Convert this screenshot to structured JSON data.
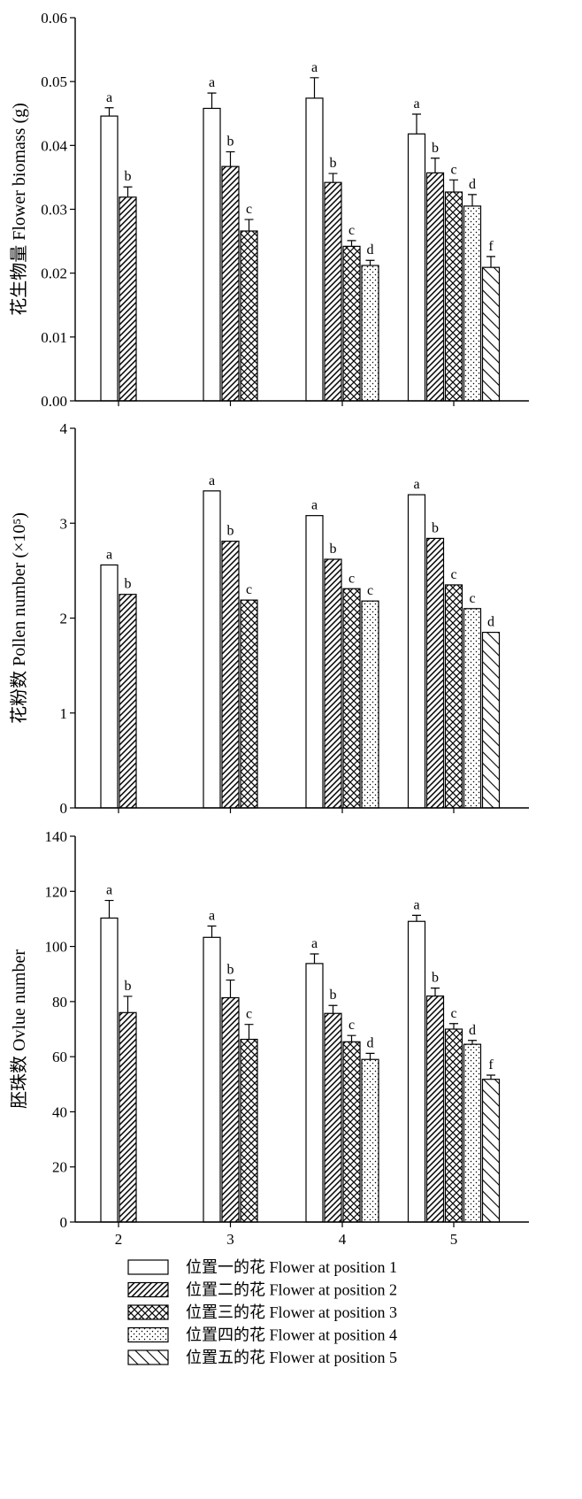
{
  "chart_data": {
    "type": "bar",
    "categories": [
      "2",
      "3",
      "4",
      "5"
    ],
    "legend": "bottom",
    "series": [
      {
        "name": "位置一的花 Flower at position 1"
      },
      {
        "name": "位置二的花 Flower at position 2"
      },
      {
        "name": "位置三的花 Flower at position 3"
      },
      {
        "name": "位置四的花 Flower at position 4"
      },
      {
        "name": "位置五的花 Flower at position 5"
      }
    ],
    "panels": [
      {
        "ylabel": "花生物量 Flower biomass (g)",
        "ylim": [
          0,
          0.06
        ],
        "yticks": [
          0,
          0.01,
          0.02,
          0.03,
          0.04,
          0.05,
          0.06
        ],
        "ytick_labels": [
          "0.00",
          "0.01",
          "0.02",
          "0.03",
          "0.04",
          "0.05",
          "0.06"
        ],
        "series": [
          {
            "values": [
              0.0446,
              0.0458,
              0.0474,
              0.0418
            ],
            "errors": [
              0.0013,
              0.0024,
              0.0032,
              0.0031
            ],
            "letters": [
              "a",
              "a",
              "a",
              "a"
            ]
          },
          {
            "values": [
              0.0319,
              0.0367,
              0.0342,
              0.0357
            ],
            "errors": [
              0.0016,
              0.0023,
              0.0014,
              0.0023
            ],
            "letters": [
              "b",
              "b",
              "b",
              "b"
            ]
          },
          {
            "values": [
              null,
              0.0266,
              0.0242,
              0.0327
            ],
            "errors": [
              null,
              0.0018,
              0.0009,
              0.0019
            ],
            "letters": [
              null,
              "c",
              "c",
              "c"
            ]
          },
          {
            "values": [
              null,
              null,
              0.0212,
              0.0305
            ],
            "errors": [
              null,
              null,
              0.0008,
              0.0018
            ],
            "letters": [
              null,
              null,
              "d",
              "d"
            ]
          },
          {
            "values": [
              null,
              null,
              null,
              0.0209
            ],
            "errors": [
              null,
              null,
              null,
              0.0017
            ],
            "letters": [
              null,
              null,
              null,
              "f"
            ]
          }
        ]
      },
      {
        "ylabel": "花粉数 Pollen number (×10⁵)",
        "ylim": [
          0,
          4
        ],
        "yticks": [
          0,
          1,
          2,
          3,
          4
        ],
        "ytick_labels": [
          "0",
          "1",
          "2",
          "3",
          "4"
        ],
        "series": [
          {
            "values": [
              2.56,
              3.34,
              3.08,
              3.3
            ],
            "letters": [
              "a",
              "a",
              "a",
              "a"
            ]
          },
          {
            "values": [
              2.25,
              2.81,
              2.62,
              2.84
            ],
            "letters": [
              "b",
              "b",
              "b",
              "b"
            ]
          },
          {
            "values": [
              null,
              2.19,
              2.31,
              2.35
            ],
            "letters": [
              null,
              "c",
              "c",
              "c"
            ]
          },
          {
            "values": [
              null,
              null,
              2.18,
              2.1
            ],
            "letters": [
              null,
              null,
              "c",
              "c"
            ]
          },
          {
            "values": [
              null,
              null,
              null,
              1.85
            ],
            "letters": [
              null,
              null,
              null,
              "d"
            ]
          }
        ]
      },
      {
        "ylabel": "胚珠数 Ovlue number",
        "ylim": [
          0,
          140
        ],
        "yticks": [
          0,
          20,
          40,
          60,
          80,
          100,
          120,
          140
        ],
        "ytick_labels": [
          "0",
          "20",
          "40",
          "60",
          "80",
          "100",
          "120",
          "140"
        ],
        "series": [
          {
            "values": [
              110.3,
              103.3,
              93.8,
              109.1
            ],
            "errors": [
              6.4,
              4.1,
              3.5,
              2.2
            ],
            "letters": [
              "a",
              "a",
              "a",
              "a"
            ]
          },
          {
            "values": [
              76.0,
              81.4,
              75.7,
              82.0
            ],
            "errors": [
              5.9,
              6.4,
              2.9,
              2.9
            ],
            "letters": [
              "b",
              "b",
              "b",
              "b"
            ]
          },
          {
            "values": [
              null,
              66.3,
              65.4,
              70.0
            ],
            "errors": [
              null,
              5.4,
              2.3,
              2.0
            ],
            "letters": [
              null,
              "c",
              "c",
              "c"
            ]
          },
          {
            "values": [
              null,
              null,
              59.0,
              64.5
            ],
            "errors": [
              null,
              null,
              2.2,
              1.4
            ],
            "letters": [
              null,
              null,
              "d",
              "d"
            ]
          },
          {
            "values": [
              null,
              null,
              null,
              51.8
            ],
            "errors": [
              null,
              null,
              null,
              1.5
            ],
            "letters": [
              null,
              null,
              null,
              "f"
            ]
          }
        ]
      }
    ]
  }
}
